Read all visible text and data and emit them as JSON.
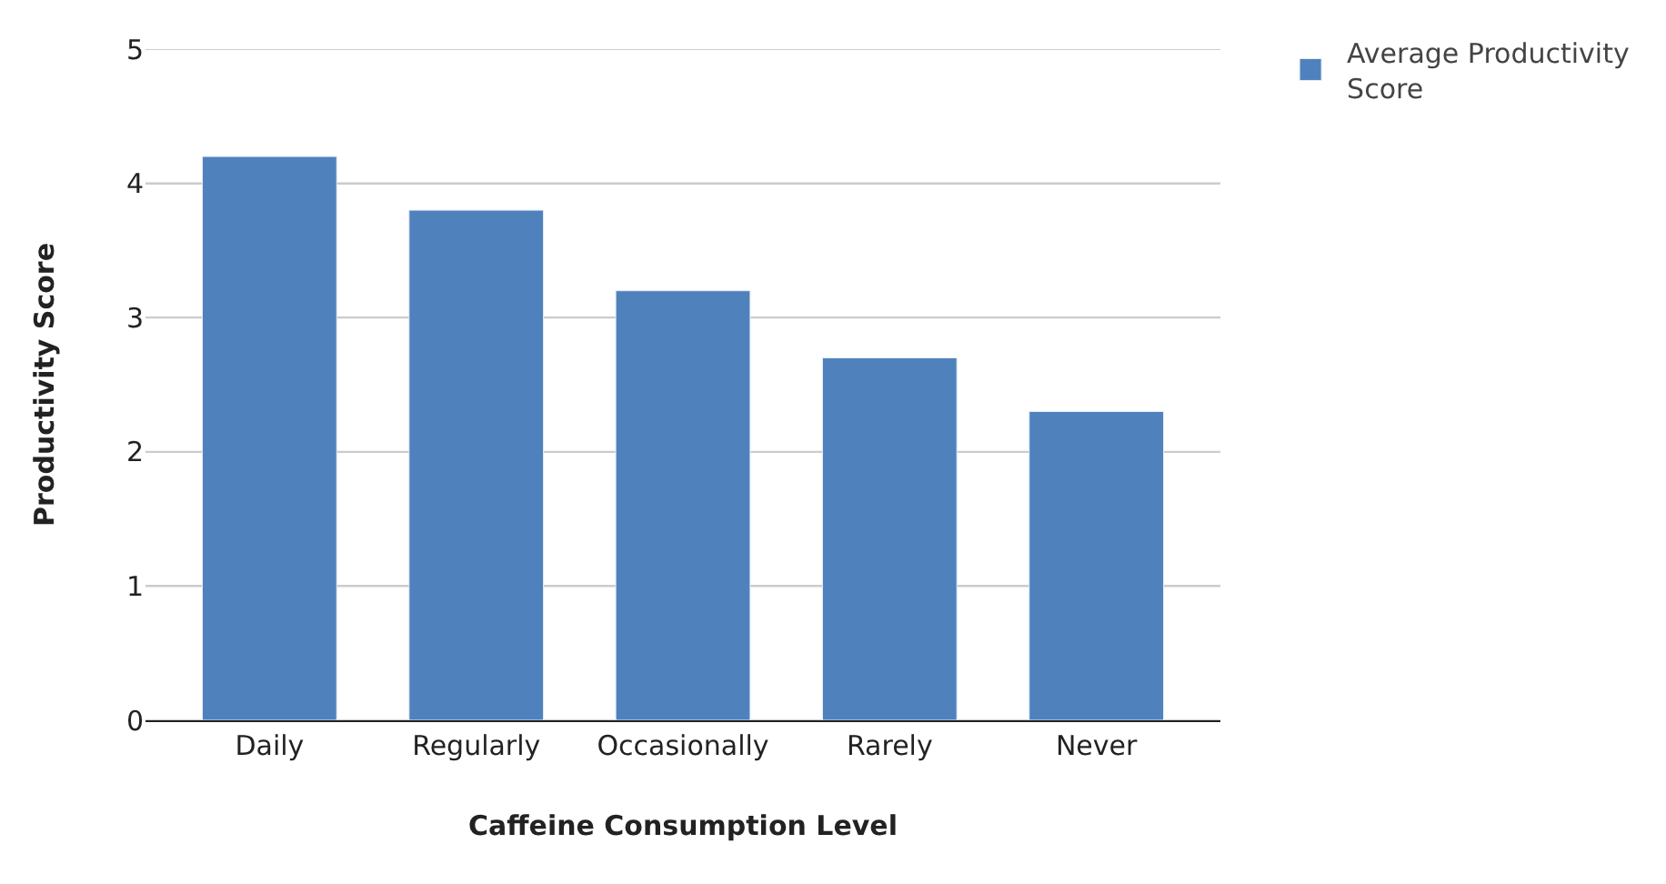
{
  "chart_data": {
    "type": "bar",
    "xlabel": "Caffeine Consumption Level",
    "ylabel": "Productivity Score",
    "categories": [
      "Daily",
      "Regularly",
      "Occasionally",
      "Rarely",
      "Never"
    ],
    "series": [
      {
        "name": "Average Productivity Score",
        "color": "#4f81bd",
        "values": [
          4.2,
          3.8,
          3.2,
          2.7,
          2.3
        ]
      }
    ],
    "ylim": [
      0,
      5
    ],
    "yticks": [
      0,
      1,
      2,
      3,
      4,
      5
    ],
    "grid": "y",
    "legend": "top right"
  }
}
